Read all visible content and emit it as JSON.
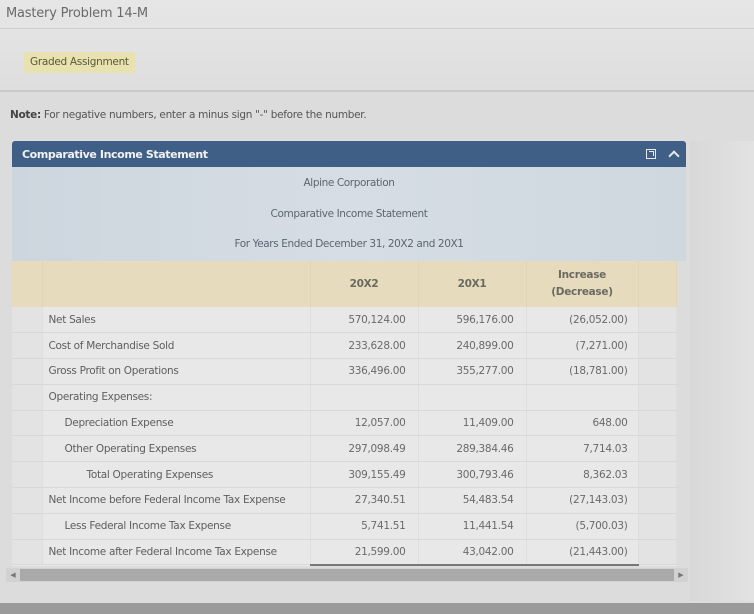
{
  "page": {
    "title": "Mastery Problem 14-M",
    "badge": "Graded Assignment",
    "note_label": "Note:",
    "note_text": " For negative numbers, enter a minus sign \"-\" before the number."
  },
  "panel": {
    "title": "Comparative Income Statement",
    "icons": [
      "popout-icon",
      "collapse-chevron-up-icon"
    ]
  },
  "statement": {
    "company": "Alpine Corporation",
    "title": "Comparative Income Statement",
    "period": "For Years Ended December 31, 20X2 and 20X1",
    "columns": {
      "y2": "20X2",
      "y1": "20X1",
      "inc_line1": "Increase",
      "inc_line2": "(Decrease)"
    },
    "rows": [
      {
        "label": "Net Sales",
        "indent": 0,
        "y2": "570,124.00",
        "y1": "596,176.00",
        "inc": "(26,052.00)"
      },
      {
        "label": "Cost of Merchandise Sold",
        "indent": 0,
        "y2": "233,628.00",
        "y1": "240,899.00",
        "inc": "(7,271.00)"
      },
      {
        "label": "Gross Profit on Operations",
        "indent": 0,
        "y2": "336,496.00",
        "y1": "355,277.00",
        "inc": "(18,781.00)"
      },
      {
        "label": "Operating Expenses:",
        "indent": 0,
        "y2": "",
        "y1": "",
        "inc": ""
      },
      {
        "label": "Depreciation Expense",
        "indent": 1,
        "y2": "12,057.00",
        "y1": "11,409.00",
        "inc": "648.00"
      },
      {
        "label": "Other Operating Expenses",
        "indent": 1,
        "y2": "297,098.49",
        "y1": "289,384.46",
        "inc": "7,714.03"
      },
      {
        "label": "Total Operating Expenses",
        "indent": 2,
        "y2": "309,155.49",
        "y1": "300,793.46",
        "inc": "8,362.03"
      },
      {
        "label": "Net Income before Federal Income Tax Expense",
        "indent": 0,
        "y2": "27,340.51",
        "y1": "54,483.54",
        "inc": "(27,143.03)"
      },
      {
        "label": "Less Federal Income Tax Expense",
        "indent": 1,
        "y2": "5,741.51",
        "y1": "11,441.54",
        "inc": "(5,700.03)"
      },
      {
        "label": "Net Income after Federal Income Tax Expense",
        "indent": 0,
        "y2": "21,599.00",
        "y1": "43,042.00",
        "inc": "(21,443.00)"
      }
    ]
  },
  "colors": {
    "panel_header": "#3f5f86",
    "column_header": "#e6dcbd",
    "badge": "#e8e2b0"
  }
}
